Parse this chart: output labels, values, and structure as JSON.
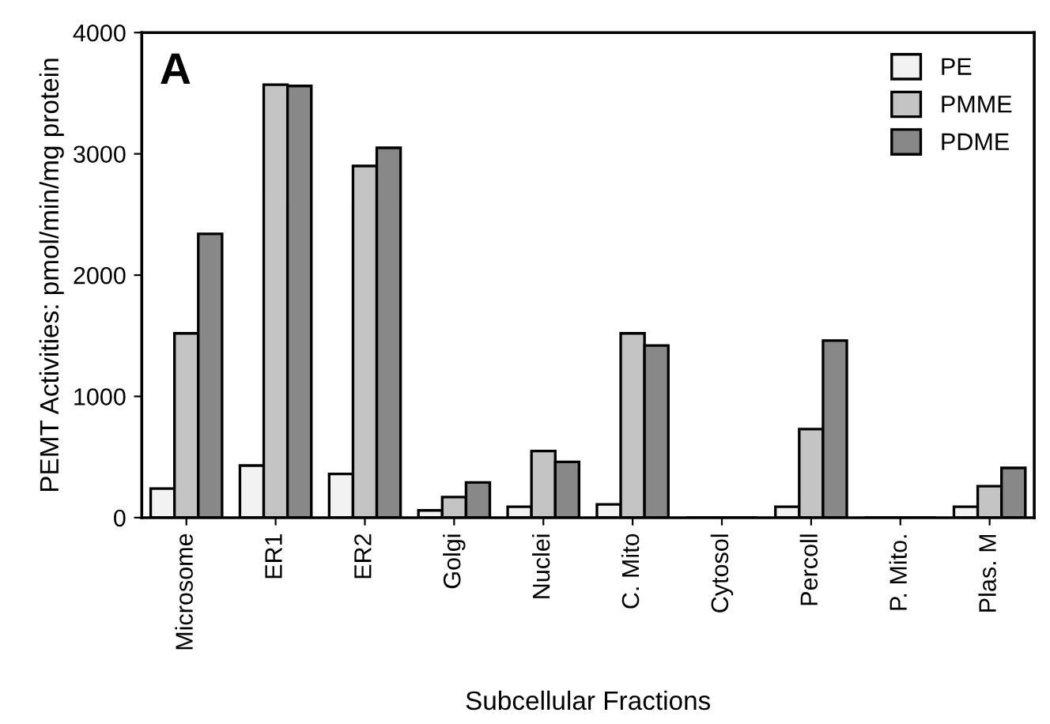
{
  "chart_data": {
    "type": "bar",
    "xlabel": "Subcellular Fractions",
    "ylabel": "PEMT Activities: pmol/min/mg protein",
    "annotations": [
      "A"
    ],
    "categories": [
      "Microsome",
      "ER1",
      "ER2",
      "Golgi",
      "Nuclei",
      "C. Mito",
      "Cytosol",
      "Percoll",
      "P. Mito.",
      "Plas. M"
    ],
    "series": [
      {
        "name": "PE",
        "color": "#f2f2f2",
        "values": [
          240,
          430,
          360,
          60,
          90,
          110,
          0,
          90,
          0,
          90
        ]
      },
      {
        "name": "PMME",
        "color": "#c4c4c4",
        "values": [
          1520,
          3570,
          2900,
          170,
          550,
          1520,
          0,
          730,
          0,
          260
        ]
      },
      {
        "name": "PDME",
        "color": "#888888",
        "values": [
          2340,
          3560,
          3050,
          290,
          460,
          1420,
          0,
          1460,
          0,
          410
        ]
      }
    ],
    "ylim": [
      0,
      4000
    ],
    "yticks": [
      0,
      1000,
      2000,
      3000,
      4000
    ],
    "legend": "top right"
  }
}
